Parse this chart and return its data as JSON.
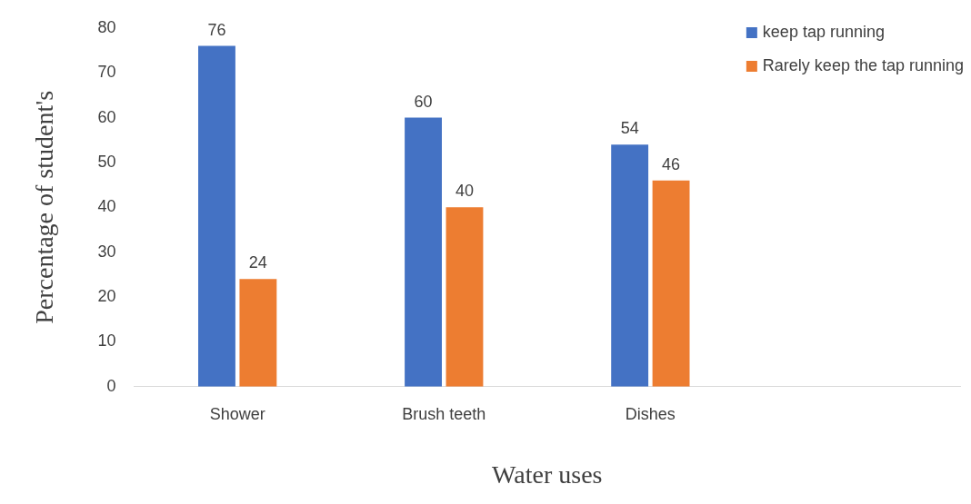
{
  "chart_data": {
    "type": "bar",
    "xlabel": "Water uses",
    "ylabel": "Percentage of student's",
    "categories": [
      "Shower",
      "Brush teeth",
      "Dishes",
      null
    ],
    "series": [
      {
        "name": "keep tap running",
        "color": "#4472c4",
        "values": [
          76,
          60,
          54,
          null
        ]
      },
      {
        "name": "Rarely keep the tap running",
        "color": "#ed7d31",
        "values": [
          24,
          40,
          46,
          null
        ]
      }
    ],
    "ylim": [
      0,
      80
    ],
    "yticks": [
      0,
      10,
      20,
      30,
      40,
      50,
      60,
      70,
      80
    ],
    "grid": false,
    "legend": "top right",
    "data_labels": true
  }
}
